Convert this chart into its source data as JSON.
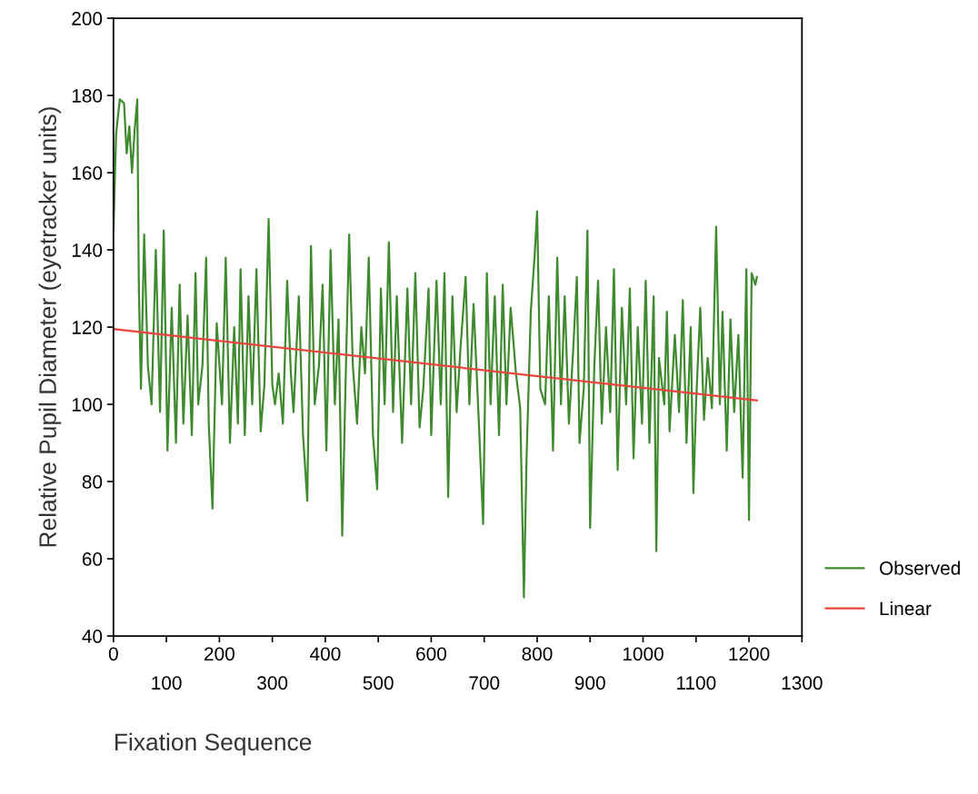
{
  "chart_data": {
    "type": "line",
    "xlabel": "Fixation Sequence",
    "ylabel": "Relative Pupil Diameter (eyetracker units)",
    "xlim": [
      0,
      1300
    ],
    "xticks": [
      0,
      {
        "value": 100,
        "label": null
      },
      200,
      {
        "value": 300,
        "label": null
      },
      400,
      {
        "value": 500,
        "label": null
      },
      600,
      {
        "value": 700,
        "label": null
      },
      800,
      {
        "value": 900,
        "label": null
      },
      1000,
      {
        "value": 1100,
        "label": null
      },
      1200,
      {
        "value": 1300,
        "label": null
      }
    ],
    "x2lim": [
      0,
      1300
    ],
    "x2ticks": [
      100,
      300,
      500,
      700,
      900,
      1100,
      1300
    ],
    "ylim": [
      40,
      200
    ],
    "yticks": [
      40,
      60,
      80,
      100,
      120,
      140,
      160,
      180,
      200
    ],
    "grid": false,
    "legend": "bottom right",
    "line_style": "solid",
    "series": [
      {
        "name": "Observed",
        "color": "#3f8a2e",
        "x": [
          0,
          5,
          12,
          20,
          25,
          30,
          35,
          40,
          45,
          48,
          52,
          58,
          65,
          72,
          80,
          88,
          95,
          102,
          110,
          118,
          125,
          132,
          140,
          148,
          155,
          160,
          168,
          175,
          180,
          187,
          195,
          205,
          212,
          220,
          228,
          235,
          240,
          248,
          255,
          262,
          270,
          278,
          285,
          293,
          300,
          305,
          312,
          320,
          328,
          335,
          340,
          350,
          358,
          366,
          373,
          380,
          388,
          395,
          402,
          410,
          418,
          425,
          432,
          438,
          445,
          452,
          460,
          468,
          475,
          482,
          490,
          498,
          505,
          512,
          520,
          528,
          535,
          545,
          555,
          562,
          570,
          578,
          585,
          595,
          600,
          610,
          618,
          625,
          632,
          640,
          648,
          655,
          665,
          672,
          680,
          690,
          698,
          705,
          712,
          720,
          728,
          735,
          742,
          750,
          760,
          768,
          775,
          780,
          788,
          795,
          800,
          806,
          815,
          822,
          830,
          838,
          845,
          852,
          860,
          868,
          875,
          880,
          888,
          895,
          900,
          908,
          915,
          922,
          930,
          938,
          945,
          952,
          960,
          968,
          975,
          982,
          990,
          998,
          1005,
          1012,
          1020,
          1025,
          1030,
          1040,
          1045,
          1050,
          1060,
          1068,
          1075,
          1082,
          1090,
          1095,
          1100,
          1108,
          1115,
          1122,
          1130,
          1138,
          1145,
          1150,
          1158,
          1165,
          1172,
          1180,
          1188,
          1195,
          1200,
          1205,
          1212,
          1215
        ],
        "values": [
          145,
          170,
          179,
          178,
          165,
          172,
          160,
          171,
          179,
          130,
          104,
          144,
          110,
          100,
          140,
          98,
          145,
          88,
          125,
          90,
          131,
          95,
          123,
          92,
          134,
          100,
          110,
          138,
          95,
          73,
          121,
          100,
          138,
          90,
          120,
          95,
          135,
          92,
          128,
          100,
          135,
          93,
          105,
          148,
          105,
          100,
          108,
          95,
          132,
          108,
          98,
          128,
          92,
          75,
          141,
          100,
          110,
          131,
          88,
          140,
          100,
          122,
          66,
          104,
          144,
          110,
          95,
          120,
          108,
          138,
          92,
          78,
          130,
          100,
          142,
          98,
          128,
          90,
          130,
          100,
          134,
          94,
          104,
          130,
          92,
          132,
          100,
          134,
          76,
          128,
          98,
          114,
          133,
          100,
          126,
          95,
          69,
          134,
          100,
          128,
          92,
          131,
          100,
          125,
          108,
          99,
          50,
          86,
          124,
          138,
          150,
          104,
          100,
          128,
          88,
          138,
          100,
          128,
          95,
          114,
          133,
          90,
          104,
          145,
          68,
          110,
          132,
          95,
          120,
          98,
          135,
          83,
          125,
          100,
          130,
          86,
          120,
          95,
          132,
          90,
          128,
          62,
          112,
          100,
          124,
          93,
          118,
          98,
          127,
          90,
          120,
          77,
          100,
          125,
          96,
          112,
          99,
          146,
          100,
          124,
          88,
          122,
          98,
          118,
          81,
          135,
          70,
          134,
          131,
          133
        ]
      },
      {
        "name": "Linear",
        "color": "#e8453c",
        "x": [
          0,
          1215
        ],
        "values": [
          119.5,
          101
        ]
      }
    ]
  }
}
